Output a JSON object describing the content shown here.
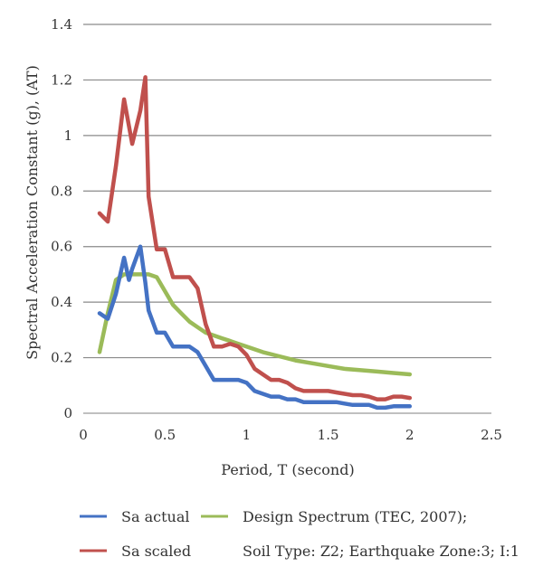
{
  "chart_data": {
    "type": "line",
    "xlabel": "Period, T (second)",
    "ylabel": "Spectral Acceleration Constant (g), (AT)",
    "xlim": [
      0,
      2.5
    ],
    "ylim": [
      0,
      1.4
    ],
    "x_ticks": [
      "0",
      "0.5",
      "1",
      "1.5",
      "2",
      "2.5"
    ],
    "y_ticks": [
      "0",
      "0.2",
      "0.4",
      "0.6",
      "0.8",
      "1",
      "1.2",
      "1.4"
    ],
    "grid": "horizontal",
    "legend_position": "bottom",
    "legend_extra": "Soil Type: Z2; Earthquake Zone:3; I:1",
    "series": [
      {
        "name": "Sa actual",
        "color": "#4472C4",
        "x": [
          0.1,
          0.15,
          0.2,
          0.25,
          0.28,
          0.3,
          0.35,
          0.38,
          0.4,
          0.45,
          0.5,
          0.55,
          0.6,
          0.65,
          0.7,
          0.75,
          0.8,
          0.85,
          0.9,
          0.95,
          1.0,
          1.05,
          1.1,
          1.15,
          1.2,
          1.25,
          1.3,
          1.35,
          1.4,
          1.45,
          1.5,
          1.55,
          1.6,
          1.65,
          1.7,
          1.75,
          1.8,
          1.85,
          1.9,
          1.95,
          2.0
        ],
        "y": [
          0.36,
          0.34,
          0.43,
          0.56,
          0.48,
          0.52,
          0.6,
          0.47,
          0.37,
          0.29,
          0.29,
          0.24,
          0.24,
          0.24,
          0.22,
          0.17,
          0.12,
          0.12,
          0.12,
          0.12,
          0.11,
          0.08,
          0.07,
          0.06,
          0.06,
          0.05,
          0.05,
          0.04,
          0.04,
          0.04,
          0.04,
          0.04,
          0.035,
          0.03,
          0.03,
          0.03,
          0.02,
          0.02,
          0.025,
          0.025,
          0.025
        ]
      },
      {
        "name": "Sa scaled",
        "color": "#C0504D",
        "x": [
          0.1,
          0.15,
          0.2,
          0.25,
          0.3,
          0.35,
          0.38,
          0.4,
          0.45,
          0.5,
          0.55,
          0.6,
          0.65,
          0.7,
          0.75,
          0.8,
          0.85,
          0.9,
          0.95,
          1.0,
          1.05,
          1.1,
          1.15,
          1.2,
          1.25,
          1.3,
          1.35,
          1.4,
          1.45,
          1.5,
          1.55,
          1.6,
          1.65,
          1.7,
          1.75,
          1.8,
          1.85,
          1.9,
          1.95,
          2.0
        ],
        "y": [
          0.72,
          0.69,
          0.89,
          1.13,
          0.97,
          1.09,
          1.21,
          0.78,
          0.59,
          0.59,
          0.49,
          0.49,
          0.49,
          0.45,
          0.32,
          0.24,
          0.24,
          0.25,
          0.24,
          0.21,
          0.16,
          0.14,
          0.12,
          0.12,
          0.11,
          0.09,
          0.08,
          0.08,
          0.08,
          0.08,
          0.075,
          0.07,
          0.065,
          0.065,
          0.06,
          0.05,
          0.05,
          0.06,
          0.06,
          0.055
        ]
      },
      {
        "name": "Design Spectrum (TEC, 2007);",
        "color": "#9BBB59",
        "x": [
          0.1,
          0.15,
          0.2,
          0.25,
          0.3,
          0.35,
          0.4,
          0.45,
          0.5,
          0.55,
          0.6,
          0.65,
          0.7,
          0.75,
          0.8,
          0.85,
          0.9,
          0.95,
          1.0,
          1.1,
          1.2,
          1.3,
          1.4,
          1.5,
          1.6,
          1.7,
          1.8,
          1.9,
          2.0
        ],
        "y": [
          0.22,
          0.36,
          0.48,
          0.5,
          0.5,
          0.5,
          0.5,
          0.49,
          0.44,
          0.39,
          0.36,
          0.33,
          0.31,
          0.29,
          0.28,
          0.27,
          0.26,
          0.25,
          0.24,
          0.22,
          0.205,
          0.19,
          0.18,
          0.17,
          0.16,
          0.155,
          0.15,
          0.145,
          0.14
        ]
      }
    ]
  }
}
